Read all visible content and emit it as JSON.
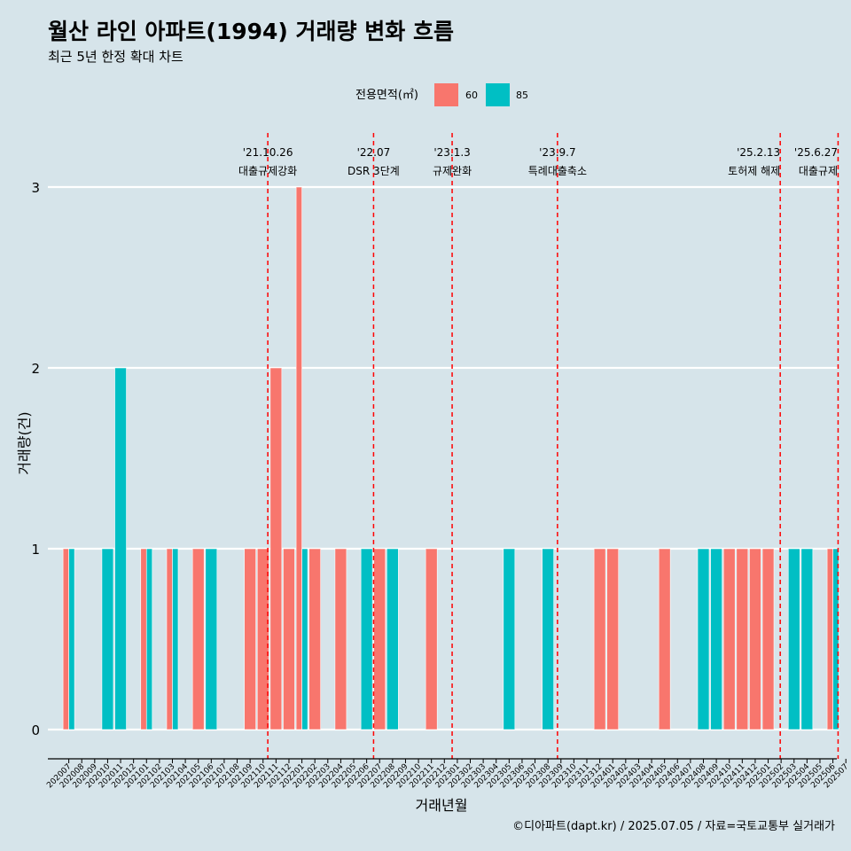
{
  "chart_data": {
    "type": "bar",
    "title": "월산 라인 아파트(1994) 거래량 변화 흐름",
    "subtitle": "최근 5년 한정 확대 차트",
    "xlabel": "거래년월",
    "ylabel": "거래량(건)",
    "caption": "©디아파트(dapt.kr) / 2025.07.05 / 자료=국토교통부 실거래가",
    "ylim": [
      0,
      3
    ],
    "yticks": [
      0,
      1,
      2,
      3
    ],
    "grid": "horizontal",
    "legend": {
      "title": "전용면적(㎡)",
      "position": "top",
      "entries": [
        {
          "name": "60",
          "color": "#F8766D"
        },
        {
          "name": "85",
          "color": "#00BFC4"
        }
      ]
    },
    "categories": [
      "202007",
      "202008",
      "202009",
      "202010",
      "202011",
      "202012",
      "202101",
      "202102",
      "202103",
      "202104",
      "202105",
      "202106",
      "202107",
      "202108",
      "202109",
      "202110",
      "202111",
      "202112",
      "202201",
      "202202",
      "202203",
      "202204",
      "202205",
      "202206",
      "202207",
      "202208",
      "202209",
      "202210",
      "202211",
      "202212",
      "202301",
      "202302",
      "202303",
      "202304",
      "202305",
      "202306",
      "202307",
      "202308",
      "202309",
      "202310",
      "202311",
      "202312",
      "202401",
      "202402",
      "202403",
      "202404",
      "202405",
      "202406",
      "202407",
      "202408",
      "202409",
      "202410",
      "202411",
      "202412",
      "202501",
      "202502",
      "202503",
      "202504",
      "202505",
      "202506",
      "202507"
    ],
    "series": [
      {
        "name": "60",
        "color": "#F8766D",
        "values": [
          1,
          0,
          0,
          0,
          0,
          0,
          1,
          0,
          1,
          0,
          1,
          0,
          0,
          0,
          1,
          1,
          2,
          1,
          3,
          1,
          0,
          1,
          0,
          0,
          1,
          0,
          0,
          0,
          1,
          0,
          0,
          0,
          0,
          0,
          0,
          0,
          0,
          0,
          0,
          0,
          0,
          1,
          1,
          0,
          0,
          0,
          1,
          0,
          0,
          0,
          0,
          1,
          1,
          1,
          1,
          0,
          0,
          0,
          0,
          1,
          0
        ]
      },
      {
        "name": "85",
        "color": "#00BFC4",
        "values": [
          1,
          0,
          0,
          1,
          2,
          0,
          1,
          0,
          1,
          0,
          0,
          1,
          0,
          0,
          0,
          0,
          0,
          0,
          1,
          0,
          0,
          0,
          0,
          1,
          0,
          1,
          0,
          0,
          0,
          0,
          0,
          0,
          0,
          0,
          1,
          0,
          0,
          1,
          0,
          0,
          0,
          0,
          0,
          0,
          0,
          0,
          0,
          0,
          0,
          1,
          1,
          0,
          0,
          0,
          0,
          0,
          1,
          1,
          0,
          1,
          0
        ]
      }
    ],
    "events": [
      {
        "date": "'21.10.26",
        "label": "대출규제강화",
        "month": "202110",
        "day": 26
      },
      {
        "date": "'22.07",
        "label": "DSR 3단계",
        "month": "202207",
        "day": 1
      },
      {
        "date": "'23.1.3",
        "label": "규제완화",
        "month": "202301",
        "day": 3
      },
      {
        "date": "'23.9.7",
        "label": "특례대출축소",
        "month": "202309",
        "day": 7
      },
      {
        "date": "'25.2.13",
        "label": "토허제 해제",
        "month": "202502",
        "day": 13
      },
      {
        "date": "'25.6.27",
        "label": "대출규제",
        "month": "202506",
        "day": 27
      }
    ]
  }
}
